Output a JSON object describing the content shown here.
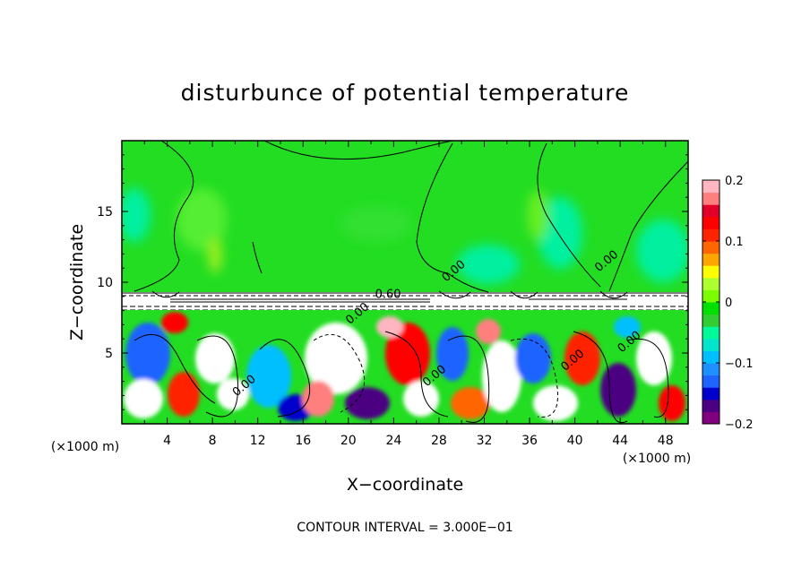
{
  "chart_data": {
    "type": "heatmap",
    "title": "disturbunce of potential temperature",
    "xlabel": "X−coordinate",
    "ylabel": "Z−coordinate",
    "x_unit_label": "(×1000 m)",
    "x_unit_label_lower": "(×1000 m)",
    "footer": "CONTOUR INTERVAL = 3.000E−01",
    "xlim": [
      0,
      50
    ],
    "ylim": [
      0,
      20
    ],
    "x_ticks": [
      "4",
      "8",
      "12",
      "16",
      "20",
      "24",
      "28",
      "32",
      "36",
      "40",
      "44",
      "48"
    ],
    "y_ticks": [
      "5",
      "10",
      "15"
    ],
    "colorbar": {
      "min": -0.2,
      "max": 0.2,
      "tick_labels": [
        "0.2",
        "0.1",
        "0",
        "−0.1",
        "−0.2"
      ],
      "colors": [
        "#800080",
        "#4b0082",
        "#0000cd",
        "#1e64ff",
        "#1e90ff",
        "#00bfff",
        "#00e5cc",
        "#00fa9a",
        "#32cd32",
        "#00e000",
        "#7cfc00",
        "#adff2f",
        "#ffff00",
        "#ffa500",
        "#ff6600",
        "#ff2400",
        "#ff0000",
        "#e0002a",
        "#ff7f7f",
        "#ffb6c1"
      ]
    },
    "grid": false,
    "contour_labels": [
      {
        "text": "0.60",
        "x": 23.5,
        "y": 8.9
      },
      {
        "text": "0.00",
        "x": 29.5,
        "y": 10.6
      },
      {
        "text": "0.00",
        "x": 43.0,
        "y": 11.3
      },
      {
        "text": "0.00",
        "x": 21.0,
        "y": 7.6
      },
      {
        "text": "0.00",
        "x": 11.0,
        "y": 2.5
      },
      {
        "text": "0.00",
        "x": 27.8,
        "y": 3.2
      },
      {
        "text": "0.00",
        "x": 40.0,
        "y": 4.3
      },
      {
        "text": "0.00",
        "x": 45.0,
        "y": 5.6
      }
    ]
  }
}
